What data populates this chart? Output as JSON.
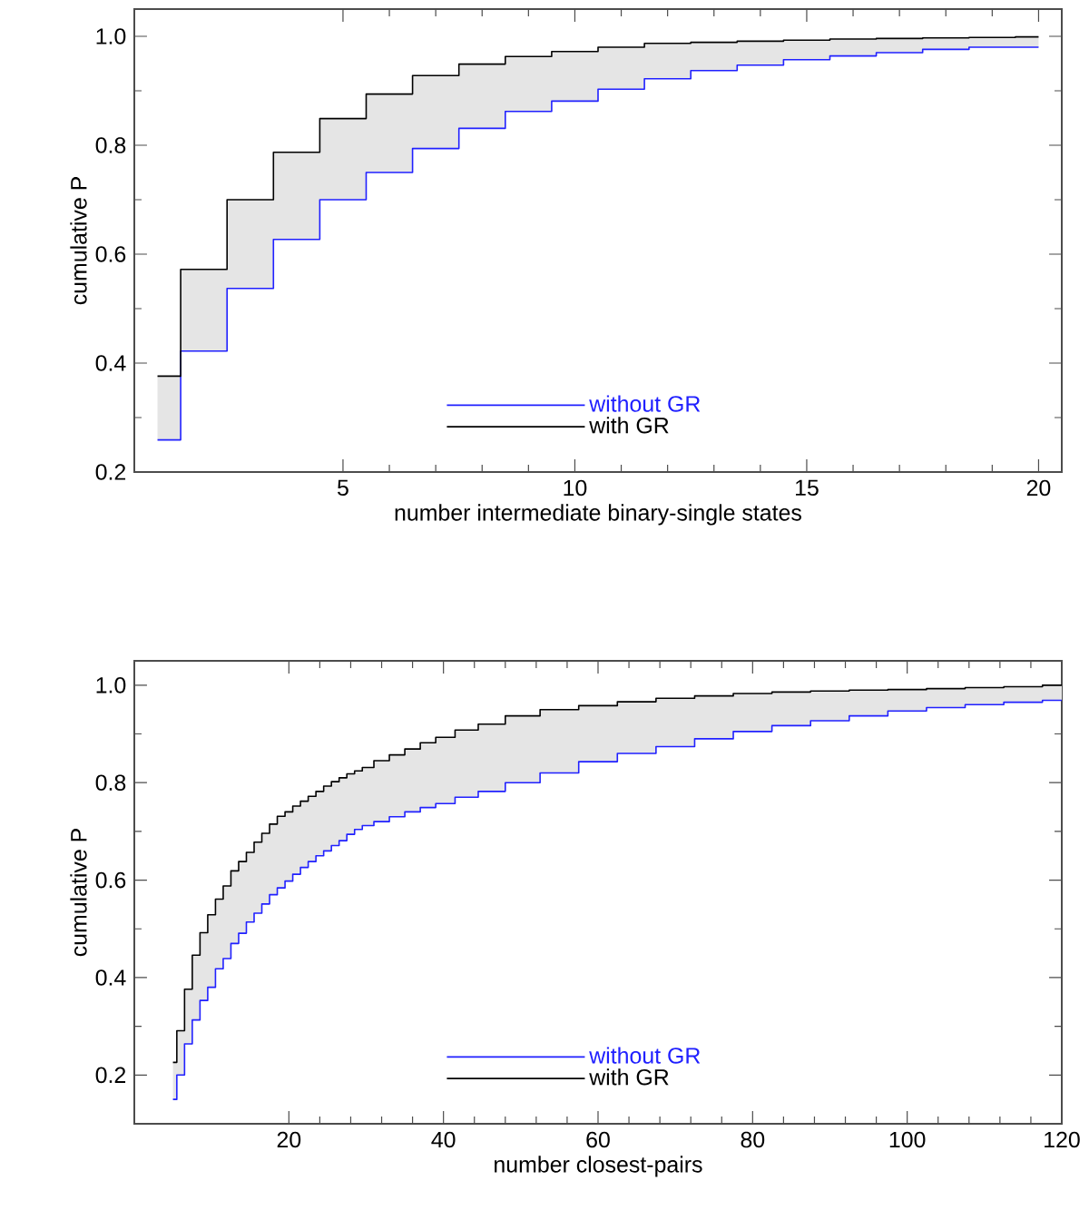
{
  "chart_data": [
    {
      "type": "step",
      "xlabel": "number intermediate binary-single states",
      "ylabel": "cumulative P",
      "x": [
        1,
        2,
        3,
        4,
        5,
        6,
        7,
        8,
        9,
        10,
        11,
        12,
        13,
        14,
        15,
        16,
        17,
        18,
        19,
        20
      ],
      "xlim": [
        0.5,
        20.5
      ],
      "xticks": [
        5,
        10,
        15,
        20
      ],
      "ylim": [
        0.2,
        1.05
      ],
      "yticks": [
        {
          "value": 0.2,
          "label": "0.2"
        },
        {
          "value": 0.4,
          "label": "0.4"
        },
        {
          "value": 0.6,
          "label": "0.6"
        },
        {
          "value": 0.8,
          "label": "0.8"
        },
        {
          "value": 1.0,
          "label": "1.0"
        }
      ],
      "legend": "bottom right",
      "series": [
        {
          "name": "without GR",
          "color": "#2020ff",
          "values": [
            0.259,
            0.422,
            0.537,
            0.627,
            0.7,
            0.75,
            0.794,
            0.831,
            0.862,
            0.881,
            0.903,
            0.922,
            0.937,
            0.947,
            0.957,
            0.964,
            0.97,
            0.976,
            0.98,
            0.98
          ]
        },
        {
          "name": "with GR",
          "color": "#000000",
          "values": [
            0.376,
            0.572,
            0.7,
            0.787,
            0.849,
            0.894,
            0.928,
            0.949,
            0.963,
            0.972,
            0.98,
            0.987,
            0.989,
            0.991,
            0.993,
            0.995,
            0.996,
            0.997,
            0.998,
            0.999
          ],
          "lower": [
            0.259,
            0.422,
            0.537,
            0.627,
            0.7,
            0.75,
            0.794,
            0.831,
            0.862,
            0.881,
            0.903,
            0.922,
            0.937,
            0.947,
            0.957,
            0.964,
            0.97,
            0.976,
            0.98,
            0.98
          ],
          "upper": [
            0.376,
            0.572,
            0.7,
            0.787,
            0.849,
            0.894,
            0.928,
            0.949,
            0.963,
            0.972,
            0.98,
            0.987,
            0.989,
            0.991,
            0.993,
            0.995,
            0.996,
            0.997,
            0.998,
            0.999
          ]
        }
      ]
    },
    {
      "type": "step",
      "xlabel": "number closest-pairs",
      "ylabel": "cumulative P",
      "x": [
        5,
        6,
        7,
        8,
        9,
        10,
        11,
        12,
        13,
        14,
        15,
        16,
        17,
        18,
        19,
        20,
        21,
        22,
        23,
        24,
        25,
        26,
        27,
        28,
        29,
        30,
        32,
        34,
        36,
        38,
        40,
        43,
        46,
        50,
        55,
        60,
        65,
        70,
        75,
        80,
        85,
        90,
        95,
        100,
        105,
        110,
        115,
        120
      ],
      "xlim": [
        0,
        120
      ],
      "xticks": [
        20,
        40,
        60,
        80,
        100,
        120
      ],
      "ylim": [
        0.1,
        1.05
      ],
      "yticks": [
        {
          "value": 0.2,
          "label": "0.2"
        },
        {
          "value": 0.4,
          "label": "0.4"
        },
        {
          "value": 0.6,
          "label": "0.6"
        },
        {
          "value": 0.8,
          "label": "0.8"
        },
        {
          "value": 1.0,
          "label": "1.0"
        }
      ],
      "legend": "bottom right",
      "series": [
        {
          "name": "without GR",
          "color": "#2020ff",
          "values": [
            0.15,
            0.2,
            0.264,
            0.313,
            0.353,
            0.38,
            0.418,
            0.439,
            0.47,
            0.491,
            0.514,
            0.532,
            0.551,
            0.57,
            0.584,
            0.598,
            0.612,
            0.626,
            0.638,
            0.65,
            0.66,
            0.671,
            0.681,
            0.694,
            0.704,
            0.712,
            0.72,
            0.73,
            0.74,
            0.749,
            0.757,
            0.77,
            0.782,
            0.8,
            0.82,
            0.843,
            0.86,
            0.874,
            0.89,
            0.905,
            0.917,
            0.927,
            0.937,
            0.947,
            0.954,
            0.96,
            0.965,
            0.969
          ]
        },
        {
          "name": "with GR",
          "color": "#000000",
          "values": [
            0.226,
            0.291,
            0.376,
            0.446,
            0.492,
            0.529,
            0.561,
            0.588,
            0.619,
            0.638,
            0.657,
            0.678,
            0.696,
            0.715,
            0.731,
            0.74,
            0.752,
            0.762,
            0.772,
            0.782,
            0.793,
            0.802,
            0.81,
            0.818,
            0.824,
            0.831,
            0.845,
            0.857,
            0.869,
            0.882,
            0.893,
            0.908,
            0.92,
            0.937,
            0.95,
            0.958,
            0.966,
            0.973,
            0.978,
            0.983,
            0.986,
            0.988,
            0.99,
            0.991,
            0.993,
            0.995,
            0.997,
            1.0
          ],
          "lower": [
            0.15,
            0.2,
            0.264,
            0.313,
            0.353,
            0.38,
            0.418,
            0.439,
            0.47,
            0.491,
            0.514,
            0.532,
            0.551,
            0.57,
            0.584,
            0.598,
            0.612,
            0.626,
            0.638,
            0.65,
            0.66,
            0.671,
            0.681,
            0.694,
            0.704,
            0.712,
            0.72,
            0.73,
            0.74,
            0.749,
            0.757,
            0.77,
            0.782,
            0.8,
            0.82,
            0.843,
            0.86,
            0.874,
            0.89,
            0.905,
            0.917,
            0.927,
            0.937,
            0.947,
            0.954,
            0.96,
            0.965,
            0.969
          ],
          "upper": [
            0.226,
            0.291,
            0.376,
            0.446,
            0.492,
            0.529,
            0.561,
            0.588,
            0.619,
            0.638,
            0.657,
            0.678,
            0.696,
            0.715,
            0.731,
            0.74,
            0.752,
            0.762,
            0.772,
            0.782,
            0.793,
            0.802,
            0.81,
            0.818,
            0.824,
            0.831,
            0.845,
            0.857,
            0.869,
            0.882,
            0.893,
            0.908,
            0.92,
            0.937,
            0.95,
            0.958,
            0.966,
            0.973,
            0.978,
            0.983,
            0.986,
            0.988,
            0.99,
            0.991,
            0.993,
            0.995,
            0.997,
            1.0
          ]
        }
      ]
    }
  ]
}
